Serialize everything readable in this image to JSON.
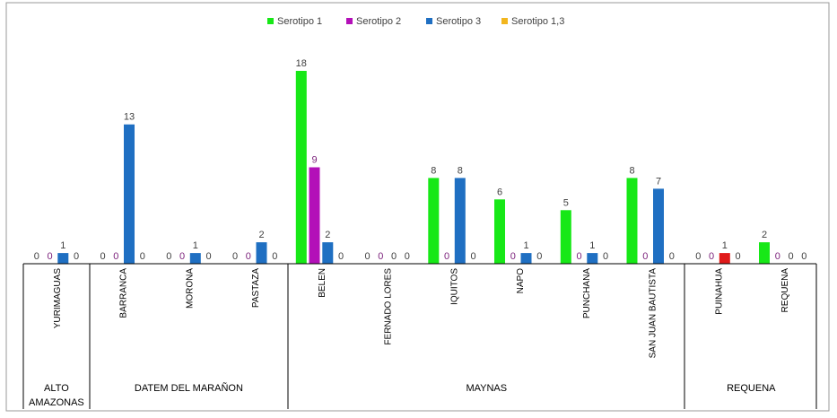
{
  "chart_data": {
    "type": "bar",
    "title": "",
    "xlabel": "",
    "ylabel": "",
    "ylim": [
      0,
      18
    ],
    "grid": false,
    "legend_position": "top-center",
    "series": [
      {
        "name": "Serotipo 1",
        "color": "#17e817",
        "values": [
          0,
          0,
          0,
          0,
          18,
          0,
          8,
          6,
          5,
          8,
          0,
          2
        ]
      },
      {
        "name": "Serotipo 2",
        "color": "#b310b8",
        "values": [
          0,
          0,
          0,
          0,
          9,
          0,
          0,
          0,
          0,
          0,
          0,
          0
        ]
      },
      {
        "name": "Serotipo 3",
        "color": "#1f6fc2",
        "values": [
          1,
          13,
          1,
          2,
          2,
          0,
          8,
          1,
          1,
          7,
          1,
          0
        ]
      },
      {
        "name": "Serotipo 1,3",
        "color": "#f2b61e",
        "values": [
          0,
          0,
          0,
          0,
          0,
          0,
          0,
          0,
          0,
          0,
          0,
          0
        ]
      }
    ],
    "categories": [
      "YURIMAGUAS",
      "BARRANCA",
      "MORONA",
      "PASTAZA",
      "BELEN",
      "FERNADO LORES",
      "IQUITOS",
      "NAPO",
      "PUNCHANA",
      "SAN JUAN BAUTISTA",
      "PUINAHUA",
      "REQUENA"
    ],
    "groups": [
      {
        "label": "ALTO AMAZONAS",
        "count": 1
      },
      {
        "label": "DATEM DEL MARAÑON",
        "count": 3
      },
      {
        "label": "MAYNAS",
        "count": 6
      },
      {
        "label": "REQUENA",
        "count": 2
      }
    ],
    "highlight_color": "#e01a1a",
    "highlighted_bars": [
      {
        "category": "PUINAHUA",
        "series": "Serotipo 3"
      }
    ]
  }
}
